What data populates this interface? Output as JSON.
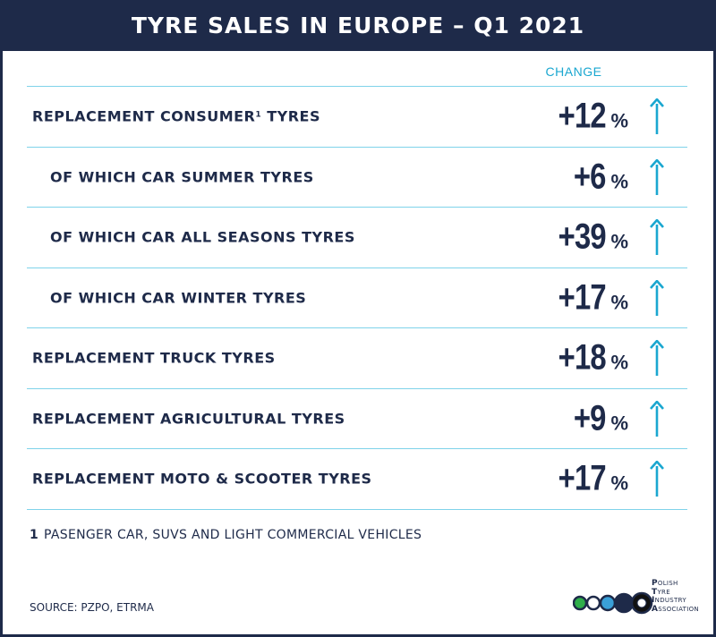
{
  "title": "TYRE SALES IN EUROPE – Q1 2021",
  "column_header": "CHANGE",
  "chart_data": {
    "type": "table",
    "title": "TYRE SALES IN EUROPE – Q1 2021",
    "column_header": "CHANGE",
    "unit": "%",
    "rows": [
      {
        "label": "REPLACEMENT CONSUMER",
        "footnote_mark": "1",
        "label_suffix": " TYRES",
        "level": 0,
        "value_text": "+12",
        "value": 12,
        "direction": "up"
      },
      {
        "label": "OF WHICH CAR SUMMER TYRES",
        "footnote_mark": "",
        "label_suffix": "",
        "level": 1,
        "value_text": "+6",
        "value": 6,
        "direction": "up"
      },
      {
        "label": "OF WHICH CAR ALL SEASONS TYRES",
        "footnote_mark": "",
        "label_suffix": "",
        "level": 1,
        "value_text": "+39",
        "value": 39,
        "direction": "up"
      },
      {
        "label": "OF WHICH CAR WINTER TYRES",
        "footnote_mark": "",
        "label_suffix": "",
        "level": 1,
        "value_text": "+17",
        "value": 17,
        "direction": "up"
      },
      {
        "label": "REPLACEMENT TRUCK TYRES",
        "footnote_mark": "",
        "label_suffix": "",
        "level": 0,
        "value_text": "+18",
        "value": 18,
        "direction": "up"
      },
      {
        "label": "REPLACEMENT AGRICULTURAL TYRES",
        "footnote_mark": "",
        "label_suffix": "",
        "level": 0,
        "value_text": "+9",
        "value": 9,
        "direction": "up"
      },
      {
        "label": "REPLACEMENT MOTO & SCOOTER TYRES",
        "footnote_mark": "",
        "label_suffix": "",
        "level": 0,
        "value_text": "+17",
        "value": 17,
        "direction": "up"
      }
    ]
  },
  "footnote": {
    "mark": "1",
    "text": "PASENGER CAR, SUVS AND LIGHT COMMERCIAL VEHICLES"
  },
  "source": "SOURCE: PZPO, ETRMA",
  "logo": {
    "lines": [
      {
        "initial": "P",
        "rest": "OLISH"
      },
      {
        "initial": "T",
        "rest": "YRE"
      },
      {
        "initial": "I",
        "rest": "NDUSTRY"
      },
      {
        "initial": "A",
        "rest": "SSOCIATION"
      }
    ],
    "circle_colors": [
      "#2fae4a",
      "#ffffff",
      "#3aa0d8",
      "#1e2a49",
      "#111111"
    ]
  },
  "colors": {
    "navy": "#1e2a49",
    "accent": "#1aa7d0",
    "divider": "#7fd3ea",
    "arrow": "#1aa7d0"
  }
}
